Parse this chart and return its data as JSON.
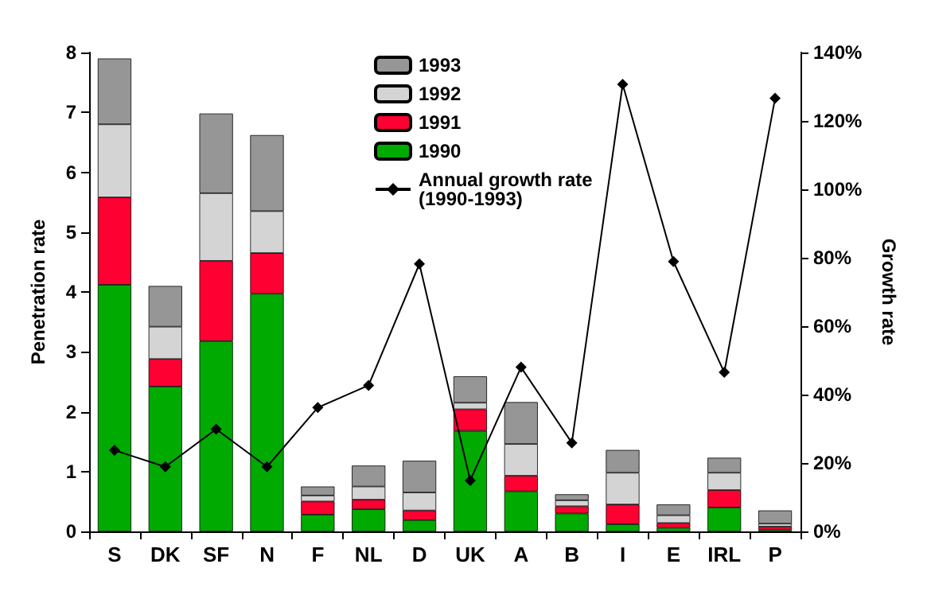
{
  "chart_data": {
    "type": "bar",
    "stacked": true,
    "ylabel": "Penetration rate",
    "y2label": "Growth rate",
    "categories": [
      "S",
      "DK",
      "SF",
      "N",
      "F",
      "NL",
      "D",
      "UK",
      "A",
      "B",
      "I",
      "E",
      "IRL",
      "P"
    ],
    "series": [
      {
        "name": "1990",
        "color": "#00aa00",
        "values": [
          4.12,
          2.42,
          3.18,
          3.97,
          0.28,
          0.37,
          0.19,
          1.68,
          0.67,
          0.3,
          0.12,
          0.06,
          0.4,
          0.03
        ]
      },
      {
        "name": "1991",
        "color": "#ff0033",
        "values": [
          1.46,
          0.46,
          1.34,
          0.68,
          0.22,
          0.16,
          0.16,
          0.36,
          0.26,
          0.12,
          0.33,
          0.08,
          0.29,
          0.05
        ]
      },
      {
        "name": "1992",
        "color": "#d4d4d4",
        "values": [
          1.22,
          0.54,
          1.13,
          0.7,
          0.1,
          0.22,
          0.3,
          0.11,
          0.53,
          0.1,
          0.53,
          0.13,
          0.29,
          0.05
        ]
      },
      {
        "name": "1993",
        "color": "#969696",
        "values": [
          1.1,
          0.68,
          1.33,
          1.27,
          0.15,
          0.35,
          0.53,
          0.44,
          0.7,
          0.1,
          0.38,
          0.18,
          0.25,
          0.22
        ]
      },
      {
        "name": "Annual growth rate\n(1990-1993)",
        "type": "line",
        "axis": "y2",
        "color": "#000000",
        "marker": "diamond",
        "line_style": "solid",
        "values": [
          23.7,
          18.9,
          29.9,
          18.9,
          36.2,
          42.7,
          78.2,
          14.9,
          48,
          25.9,
          130.7,
          78.9,
          46.5,
          126.6
        ]
      }
    ],
    "ylim": [
      0,
      8
    ],
    "yticks": [
      0,
      1,
      2,
      3,
      4,
      5,
      6,
      7,
      8
    ],
    "y2lim": [
      0,
      140
    ],
    "y2ticks": [
      {
        "value": 0,
        "label": "0%"
      },
      {
        "value": 20,
        "label": "20%"
      },
      {
        "value": 40,
        "label": "40%"
      },
      {
        "value": 60,
        "label": "60%"
      },
      {
        "value": 80,
        "label": "80%"
      },
      {
        "value": 100,
        "label": "100%"
      },
      {
        "value": 120,
        "label": "120%"
      },
      {
        "value": 140,
        "label": "140%"
      }
    ],
    "grid": false,
    "legend": "top"
  }
}
